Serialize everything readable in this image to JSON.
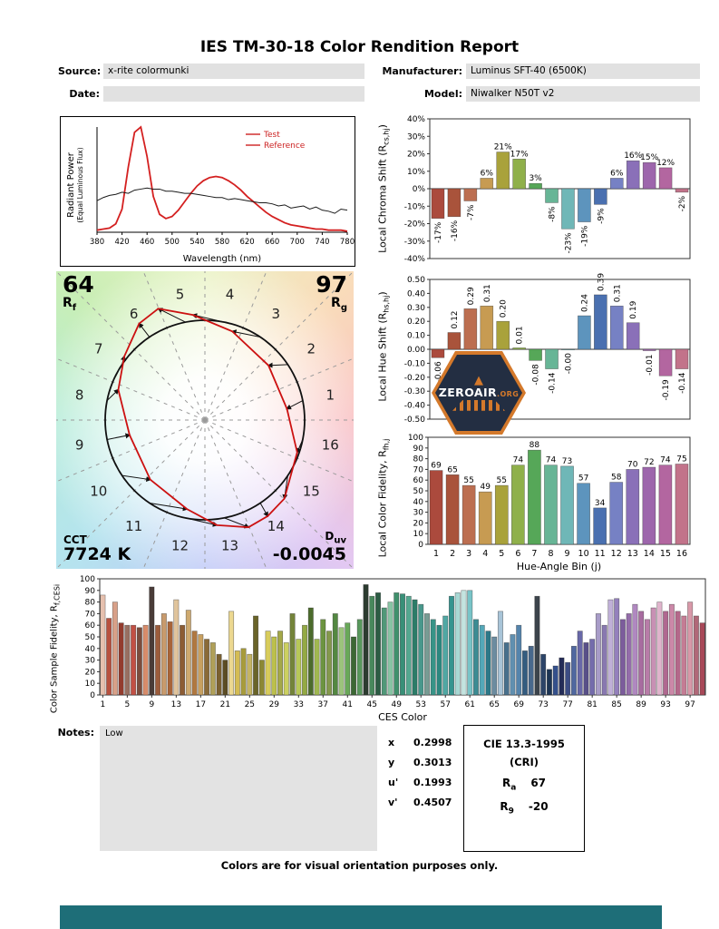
{
  "report": {
    "title": "IES TM-30-18 Color Rendition Report",
    "fields": {
      "source_label": "Source:",
      "source_value": "x-rite colormunki",
      "manufacturer_label": "Manufacturer:",
      "manufacturer_value": "Luminus SFT-40 (6500K)",
      "date_label": "Date:",
      "date_value": "",
      "model_label": "Model:",
      "model_value": "Niwalker N50T v2"
    },
    "notes_label": "Notes:",
    "notes_value": "Low",
    "footer_note": "Colors are for visual orientation purposes only."
  },
  "cvg": {
    "rf_value": "64",
    "rf_main": "R",
    "rf_sub": "f",
    "rg_value": "97",
    "rg_main": "R",
    "rg_sub": "g",
    "cct_label": "CCT",
    "cct_value": "7724 K",
    "duv_main": "D",
    "duv_sub": "uv",
    "duv_value": "-0.0045"
  },
  "chromaticity": {
    "rows": [
      {
        "label": "x",
        "value": "0.2998"
      },
      {
        "label": "y",
        "value": "0.3013"
      },
      {
        "label": "u'",
        "value": "0.1993"
      },
      {
        "label": "v'",
        "value": "0.4507"
      }
    ]
  },
  "cie": {
    "title": "CIE 13.3-1995",
    "subtitle": "(CRI)",
    "ra_main": "R",
    "ra_sub": "a",
    "ra_value": "67",
    "r9_main": "R",
    "r9_sub": "9",
    "r9_value": "-20"
  },
  "watermark": {
    "icon_glyph": "▲",
    "name": "ZEROAIR",
    "tld": ".ORG"
  },
  "hue_bin_colors": [
    "#ab4a3d",
    "#a9533b",
    "#bc6e50",
    "#c79b52",
    "#a9a23b",
    "#8fb04a",
    "#56a758",
    "#67b596",
    "#6fb7b7",
    "#5d94bd",
    "#4a70b0",
    "#7681c4",
    "#8a70b8",
    "#9d66ac",
    "#b366a0",
    "#c2738a"
  ],
  "chart_data": [
    {
      "id": "spd",
      "type": "line",
      "xlabel": "Wavelength (nm)",
      "ylabel": "Radiant Power",
      "ylabel_sub": "(Equal Luminous Flux)",
      "xlim": [
        380,
        780
      ],
      "xtick_step": 40,
      "x_start": 380,
      "x_step": 10,
      "legend_color": "#cc2222",
      "series": [
        {
          "name": "Test",
          "color": "#d42020",
          "width": 1.8,
          "values": [
            0.02,
            0.03,
            0.04,
            0.08,
            0.22,
            0.62,
            0.95,
            1.0,
            0.72,
            0.34,
            0.17,
            0.13,
            0.15,
            0.21,
            0.29,
            0.37,
            0.44,
            0.49,
            0.52,
            0.53,
            0.52,
            0.49,
            0.45,
            0.4,
            0.34,
            0.29,
            0.24,
            0.19,
            0.15,
            0.12,
            0.09,
            0.07,
            0.06,
            0.05,
            0.04,
            0.03,
            0.03,
            0.02,
            0.02,
            0.02,
            0.01
          ]
        },
        {
          "name": "Reference",
          "color": "#1a1a1a",
          "width": 1,
          "values": [
            0.3,
            0.33,
            0.35,
            0.36,
            0.38,
            0.37,
            0.4,
            0.41,
            0.42,
            0.41,
            0.41,
            0.39,
            0.39,
            0.38,
            0.37,
            0.37,
            0.36,
            0.35,
            0.34,
            0.33,
            0.33,
            0.31,
            0.32,
            0.31,
            0.3,
            0.29,
            0.28,
            0.28,
            0.27,
            0.25,
            0.26,
            0.23,
            0.24,
            0.25,
            0.22,
            0.24,
            0.21,
            0.2,
            0.18,
            0.22,
            0.21
          ]
        }
      ]
    },
    {
      "id": "chroma",
      "type": "bar",
      "ylabel_pre": "Local Chroma Shift (R",
      "ylabel_sub": "cs,hj",
      "ylabel_post": ")",
      "ylim": [
        -40,
        40
      ],
      "ystep": 10,
      "tick_suffix": "%",
      "categories": [
        1,
        2,
        3,
        4,
        5,
        6,
        7,
        8,
        9,
        10,
        11,
        12,
        13,
        14,
        15,
        16
      ],
      "values": [
        -17,
        -16,
        -7,
        6,
        21,
        17,
        3,
        -8,
        -23,
        -19,
        -9,
        6,
        16,
        15,
        12,
        -2
      ],
      "labels": [
        "-17%",
        "-16%",
        "-7%",
        "6%",
        "21%",
        "17%",
        "3%",
        "-8%",
        "-23%",
        "-19%",
        "-9%",
        "6%",
        "16%",
        "15%",
        "12%",
        "-2%"
      ]
    },
    {
      "id": "hue",
      "type": "bar",
      "ylabel_pre": "Local Hue Shift (R",
      "ylabel_sub": "hs,hj",
      "ylabel_post": ")",
      "ylim": [
        -0.5,
        0.5
      ],
      "ystep": 0.1,
      "tick_decimals": 2,
      "categories": [
        1,
        2,
        3,
        4,
        5,
        6,
        7,
        8,
        9,
        10,
        11,
        12,
        13,
        14,
        15,
        16
      ],
      "values": [
        -0.06,
        0.12,
        0.29,
        0.31,
        0.2,
        0.01,
        -0.08,
        -0.14,
        0,
        0.24,
        0.39,
        0.31,
        0.19,
        -0.01,
        -0.19,
        -0.14
      ],
      "labels": [
        "-0.06",
        "0.12",
        "0.29",
        "0.31",
        "0.20",
        "0.01",
        "-0.08",
        "-0.14",
        "-0.00",
        "0.24",
        "0.39",
        "0.31",
        "0.19",
        "-0.01",
        "-0.19",
        "-0.14"
      ]
    },
    {
      "id": "fidelity",
      "type": "bar",
      "ylabel_pre": "Local Color Fidelity, R",
      "ylabel_sub": "fh,j",
      "ylabel_post": "",
      "xlabel": "Hue-Angle Bin (j)",
      "ylim": [
        0,
        100
      ],
      "ystep": 10,
      "categories": [
        1,
        2,
        3,
        4,
        5,
        6,
        7,
        8,
        9,
        10,
        11,
        12,
        13,
        14,
        15,
        16
      ],
      "values": [
        69,
        65,
        55,
        49,
        55,
        74,
        88,
        74,
        73,
        57,
        34,
        58,
        70,
        72,
        74,
        75
      ],
      "labels": [
        "69",
        "65",
        "55",
        "49",
        "55",
        "74",
        "88",
        "74",
        "73",
        "57",
        "34",
        "58",
        "70",
        "72",
        "74",
        "75"
      ]
    },
    {
      "id": "ces",
      "type": "bar",
      "ylabel_pre": "Color Sample Fidelity, R",
      "ylabel_sub": "f,CESi",
      "ylabel_post": "",
      "xlabel": "CES Color",
      "ylim": [
        0,
        100
      ],
      "ystep": 10,
      "xtick_every": 4,
      "values": [
        86,
        66,
        80,
        62,
        60,
        60,
        58,
        60,
        93,
        60,
        70,
        63,
        82,
        60,
        73,
        55,
        52,
        48,
        45,
        35,
        30,
        72,
        38,
        40,
        35,
        68,
        30,
        55,
        50,
        55,
        45,
        70,
        48,
        60,
        75,
        48,
        65,
        55,
        70,
        58,
        62,
        50,
        65,
        95,
        85,
        88,
        75,
        80,
        88,
        87,
        85,
        82,
        78,
        70,
        65,
        60,
        68,
        85,
        88,
        90,
        90,
        65,
        60,
        55,
        50,
        72,
        45,
        52,
        60,
        38,
        42,
        85,
        35,
        22,
        25,
        32,
        28,
        42,
        55,
        45,
        48,
        70,
        60,
        82,
        83,
        65,
        70,
        78,
        72,
        65,
        75,
        80,
        72,
        78,
        72,
        68,
        80,
        68,
        62
      ],
      "colors": [
        "#e6c0ae",
        "#b8503e",
        "#d8a088",
        "#933c2e",
        "#987062",
        "#c25044",
        "#7c4c3c",
        "#d88c6a",
        "#4a3c38",
        "#9c5c3c",
        "#c89a6c",
        "#a86438",
        "#e0c49c",
        "#8c5c34",
        "#ceaa70",
        "#b07840",
        "#c8a060",
        "#8a6a38",
        "#b0a058",
        "#7a6030",
        "#5c4c24",
        "#ecd890",
        "#d4bc54",
        "#a89c3c",
        "#c4b464",
        "#6a6428",
        "#8c8834",
        "#d8cc5c",
        "#bcc04c",
        "#a4a848",
        "#ccd060",
        "#74843a",
        "#b8c858",
        "#94aa44",
        "#4c6c2c",
        "#a0b850",
        "#6c9440",
        "#84984c",
        "#548842",
        "#9cc47c",
        "#68a858",
        "#3c6834",
        "#58985c",
        "#2c3c30",
        "#48885c",
        "#2c5c44",
        "#509878",
        "#88c4a4",
        "#40906c",
        "#389078",
        "#54a890",
        "#2c7c68",
        "#48988c",
        "#789c94",
        "#389488",
        "#2c8880",
        "#50a8a4",
        "#34948f",
        "#a8d8d4",
        "#c4e4e0",
        "#78c4c8",
        "#3c8c94",
        "#54a8b8",
        "#2c7888",
        "#6c8ca0",
        "#a8c4d8",
        "#48708c",
        "#6090b0",
        "#5484ac",
        "#345c80",
        "#48688c",
        "#3c444c",
        "#2c4468",
        "#1c3454",
        "#34508c",
        "#242c58",
        "#3c4c84",
        "#5068a0",
        "#6868a8",
        "#585088",
        "#746cac",
        "#a89cc8",
        "#8878b0",
        "#c0b0d8",
        "#9480bc",
        "#7c5c9c",
        "#946caa",
        "#b088c0",
        "#a86ca0",
        "#b87ca8",
        "#c890b4",
        "#e0b4cc",
        "#b06890",
        "#cc88a8",
        "#b4688a",
        "#c47c94",
        "#d898a8",
        "#b06878",
        "#a84858"
      ]
    }
  ]
}
